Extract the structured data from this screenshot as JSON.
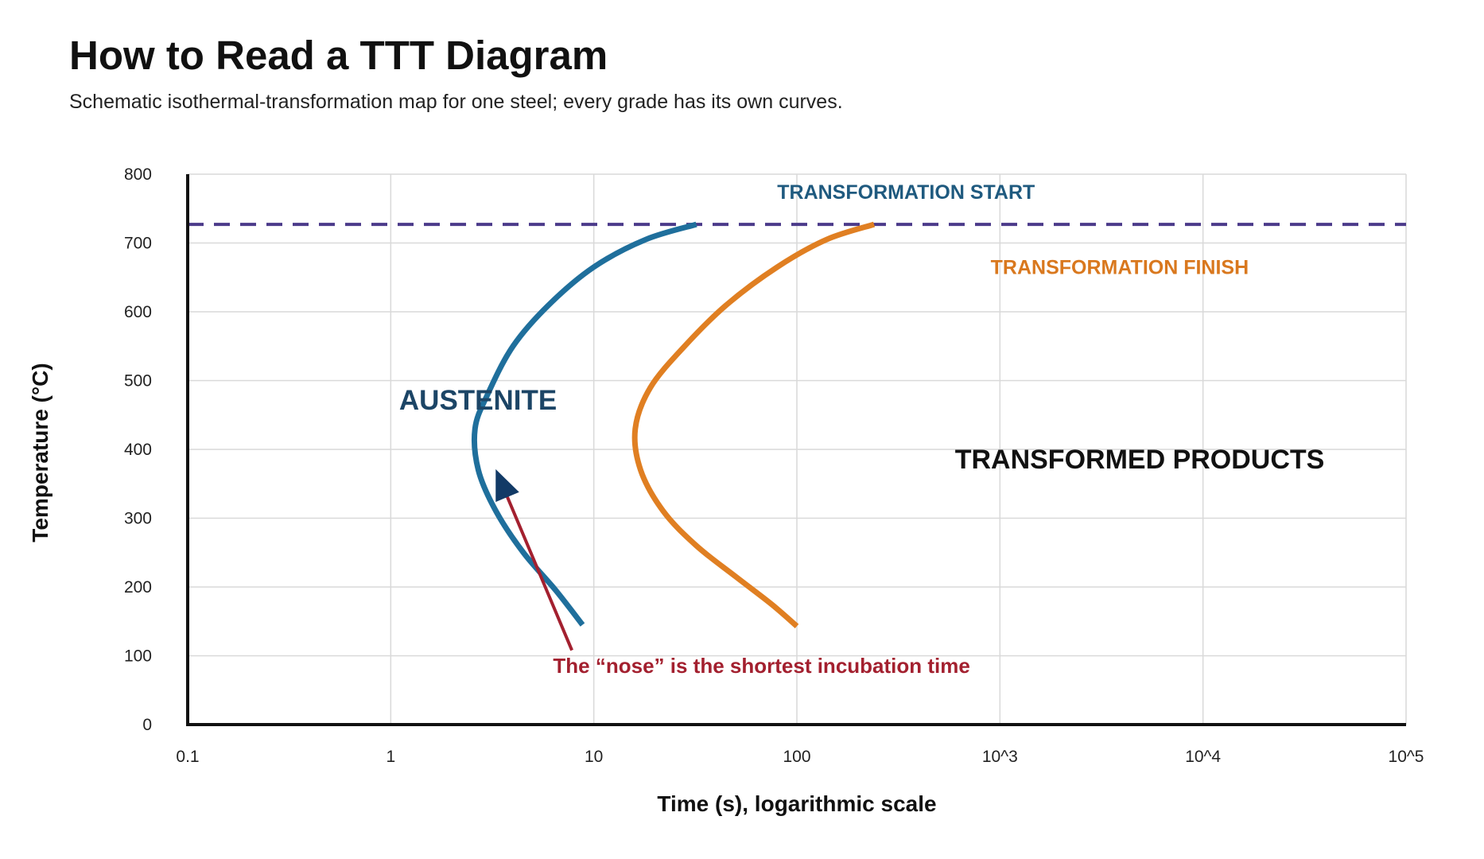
{
  "title": "How to Read a TTT Diagram",
  "subtitle": "Schematic isothermal-transformation map for one steel; every grade has its own curves.",
  "colors": {
    "start_curve": "#1f6f9c",
    "finish_curve": "#e07f22",
    "reference_line": "#4b3a8a",
    "annotation": "#a3202f",
    "austenite_label": "#1c4566",
    "start_label": "#1f5a7f",
    "finish_label": "#d9781e",
    "products_label": "#111111",
    "grid": "#d9d9d9",
    "axis": "#111111"
  },
  "chart_data": {
    "type": "line",
    "xlabel": "Time (s), logarithmic scale",
    "ylabel": "Temperature (°C)",
    "x_scale": "log",
    "xlim": [
      0.1,
      100000
    ],
    "ylim": [
      0,
      800
    ],
    "grid": true,
    "x_ticks": [
      {
        "value": 0.1,
        "label": "0.1"
      },
      {
        "value": 1,
        "label": "1"
      },
      {
        "value": 10,
        "label": "10"
      },
      {
        "value": 100,
        "label": "100"
      },
      {
        "value": 1000,
        "label": "10^3"
      },
      {
        "value": 10000,
        "label": "10^4"
      },
      {
        "value": 100000,
        "label": "10^5"
      }
    ],
    "y_ticks": [
      {
        "value": 0,
        "label": "0"
      },
      {
        "value": 100,
        "label": "100"
      },
      {
        "value": 200,
        "label": "200"
      },
      {
        "value": 300,
        "label": "300"
      },
      {
        "value": 400,
        "label": "400"
      },
      {
        "value": 500,
        "label": "500"
      },
      {
        "value": 600,
        "label": "600"
      },
      {
        "value": 700,
        "label": "700"
      },
      {
        "value": 800,
        "label": "800"
      }
    ],
    "reference_line": {
      "y": 727,
      "style": "dashed"
    },
    "series": [
      {
        "name": "TRANSFORMATION START",
        "color": "#1f6f9c",
        "points": [
          [
            32,
            727
          ],
          [
            18,
            705
          ],
          [
            10,
            665
          ],
          [
            6,
            610
          ],
          [
            4,
            550
          ],
          [
            3,
            480
          ],
          [
            2.6,
            430
          ],
          [
            2.7,
            370
          ],
          [
            3.3,
            310
          ],
          [
            4.5,
            250
          ],
          [
            6.5,
            195
          ],
          [
            8.8,
            145
          ]
        ]
      },
      {
        "name": "TRANSFORMATION FINISH",
        "color": "#e07f22",
        "points": [
          [
            240,
            727
          ],
          [
            140,
            705
          ],
          [
            80,
            665
          ],
          [
            45,
            610
          ],
          [
            28,
            550
          ],
          [
            19,
            490
          ],
          [
            16,
            430
          ],
          [
            17,
            370
          ],
          [
            22,
            310
          ],
          [
            32,
            260
          ],
          [
            50,
            215
          ],
          [
            75,
            175
          ],
          [
            100,
            143
          ]
        ]
      }
    ],
    "annotations": [
      {
        "text": "AUSTENITE",
        "x": 1.1,
        "y": 458,
        "color": "#1c4566"
      },
      {
        "text": "TRANSFORMED PRODUCTS",
        "x": 600,
        "y": 372,
        "color": "#111111"
      },
      {
        "text": "TRANSFORMATION START",
        "x": 80,
        "y": 764,
        "color": "#1f5a7f"
      },
      {
        "text": "TRANSFORMATION FINISH",
        "x": 900,
        "y": 655,
        "color": "#d9781e"
      },
      {
        "text": "The “nose” is the shortest incubation time",
        "x": 6.3,
        "y": 75,
        "color": "#a3202f"
      }
    ],
    "arrow": {
      "from": [
        7.8,
        108
      ],
      "to": [
        3.5,
        352
      ],
      "color": "#a3202f"
    }
  }
}
